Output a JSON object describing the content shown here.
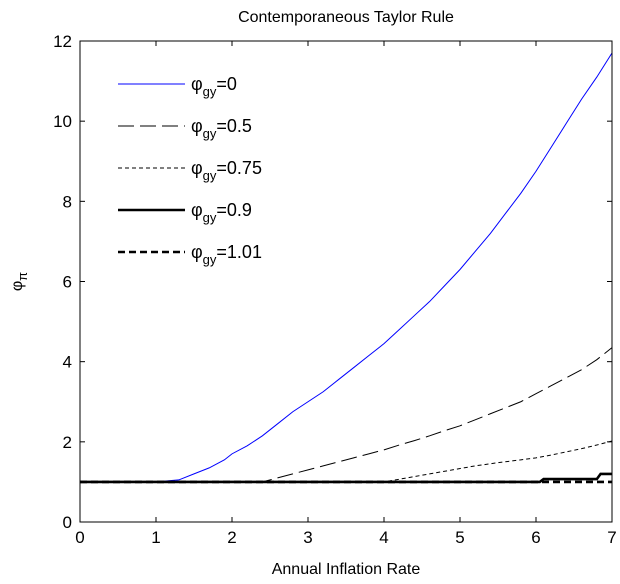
{
  "chart_data": {
    "type": "line",
    "title": "Contemporaneous Taylor Rule",
    "xlabel": "Annual Inflation Rate",
    "ylabel": "φπ",
    "ylabel_parts": {
      "base": "φ",
      "sub": "π"
    },
    "xlim": [
      0,
      7
    ],
    "ylim": [
      0,
      12
    ],
    "xticks": [
      0,
      1,
      2,
      3,
      4,
      5,
      6,
      7
    ],
    "yticks": [
      0,
      2,
      4,
      6,
      8,
      10,
      12
    ],
    "grid": false,
    "legend_position": "top-left",
    "series": [
      {
        "name": "φgy=0",
        "legend_base": "φ",
        "legend_sub": "gy",
        "legend_value": "=0",
        "color": "#0000ff",
        "dash": "solid",
        "weight": "thin",
        "x": [
          0,
          1.0,
          1.3,
          1.5,
          1.7,
          1.9,
          2.0,
          2.2,
          2.4,
          2.6,
          2.8,
          3.0,
          3.2,
          3.4,
          3.6,
          3.8,
          4.0,
          4.2,
          4.4,
          4.6,
          4.8,
          5.0,
          5.2,
          5.4,
          5.6,
          5.8,
          6.0,
          6.2,
          6.4,
          6.6,
          6.8,
          7.0
        ],
        "y": [
          1.0,
          1.0,
          1.05,
          1.2,
          1.35,
          1.55,
          1.7,
          1.9,
          2.15,
          2.45,
          2.75,
          3.0,
          3.25,
          3.55,
          3.85,
          4.15,
          4.45,
          4.8,
          5.15,
          5.5,
          5.9,
          6.3,
          6.75,
          7.2,
          7.7,
          8.2,
          8.75,
          9.35,
          9.95,
          10.55,
          11.1,
          11.7
        ]
      },
      {
        "name": "φgy=0.5",
        "legend_base": "φ",
        "legend_sub": "gy",
        "legend_value": "=0.5",
        "color": "#000000",
        "dash": "longdash",
        "weight": "thin",
        "x": [
          0,
          2.4,
          2.6,
          2.8,
          3.0,
          3.2,
          3.4,
          3.6,
          3.8,
          4.0,
          4.2,
          4.4,
          4.6,
          4.8,
          5.0,
          5.2,
          5.4,
          5.6,
          5.8,
          6.0,
          6.2,
          6.4,
          6.6,
          6.8,
          7.0
        ],
        "y": [
          1.0,
          1.0,
          1.1,
          1.2,
          1.3,
          1.4,
          1.5,
          1.6,
          1.7,
          1.8,
          1.92,
          2.03,
          2.15,
          2.28,
          2.4,
          2.55,
          2.7,
          2.85,
          3.0,
          3.2,
          3.4,
          3.6,
          3.8,
          4.05,
          4.35
        ]
      },
      {
        "name": "φgy=0.75",
        "legend_base": "φ",
        "legend_sub": "gy",
        "legend_value": "=0.75",
        "color": "#000000",
        "dash": "shortdash",
        "weight": "thin",
        "x": [
          0,
          4.0,
          4.3,
          4.6,
          4.9,
          5.2,
          5.5,
          5.8,
          6.0,
          6.2,
          6.4,
          6.6,
          6.8,
          7.0
        ],
        "y": [
          1.0,
          1.0,
          1.1,
          1.2,
          1.3,
          1.4,
          1.48,
          1.55,
          1.6,
          1.67,
          1.75,
          1.83,
          1.92,
          2.02
        ]
      },
      {
        "name": "φgy=0.9",
        "legend_base": "φ",
        "legend_sub": "gy",
        "legend_value": "=0.9",
        "color": "#000000",
        "dash": "solid",
        "weight": "thick",
        "x": [
          0,
          6.05,
          6.1,
          6.8,
          6.85,
          7.0
        ],
        "y": [
          1.0,
          1.0,
          1.07,
          1.07,
          1.2,
          1.2
        ]
      },
      {
        "name": "φgy=1.01",
        "legend_base": "φ",
        "legend_sub": "gy",
        "legend_value": "=1.01",
        "color": "#000000",
        "dash": "shortdash",
        "weight": "thick",
        "x": [
          0,
          7.0
        ],
        "y": [
          1.0,
          1.0
        ]
      }
    ]
  }
}
